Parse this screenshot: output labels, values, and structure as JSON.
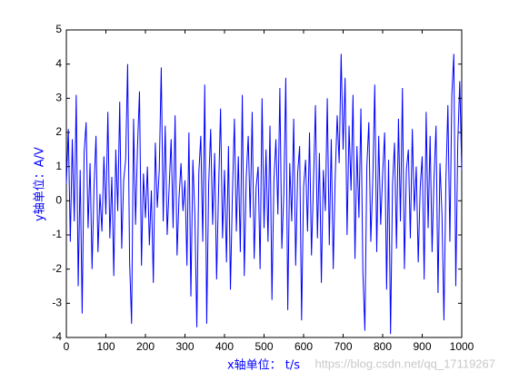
{
  "chart_data": {
    "type": "line",
    "xlabel": "x轴单位： t/s",
    "ylabel": "y轴单位：A/V",
    "watermark": "https://blog.csdn.net/qq_17119267",
    "color": "#0000ff",
    "xlim": [
      0,
      1000
    ],
    "ylim": [
      -4,
      5
    ],
    "xticks": [
      0,
      100,
      200,
      300,
      400,
      500,
      600,
      700,
      800,
      900,
      1000
    ],
    "yticks": [
      -4,
      -3,
      -2,
      -1,
      0,
      1,
      2,
      3,
      4,
      5
    ],
    "x": [
      0,
      5,
      10,
      15,
      20,
      25,
      30,
      35,
      40,
      45,
      50,
      55,
      60,
      65,
      70,
      75,
      80,
      85,
      90,
      95,
      100,
      105,
      110,
      115,
      120,
      125,
      130,
      135,
      140,
      145,
      150,
      155,
      160,
      165,
      170,
      175,
      180,
      185,
      190,
      195,
      200,
      205,
      210,
      215,
      220,
      225,
      230,
      235,
      240,
      245,
      250,
      255,
      260,
      265,
      270,
      275,
      280,
      285,
      290,
      295,
      300,
      305,
      310,
      315,
      320,
      325,
      330,
      335,
      340,
      345,
      350,
      355,
      360,
      365,
      370,
      375,
      380,
      385,
      390,
      395,
      400,
      405,
      410,
      415,
      420,
      425,
      430,
      435,
      440,
      445,
      450,
      455,
      460,
      465,
      470,
      475,
      480,
      485,
      490,
      495,
      500,
      505,
      510,
      515,
      520,
      525,
      530,
      535,
      540,
      545,
      550,
      555,
      560,
      565,
      570,
      575,
      580,
      585,
      590,
      595,
      600,
      605,
      610,
      615,
      620,
      625,
      630,
      635,
      640,
      645,
      650,
      655,
      660,
      665,
      670,
      675,
      680,
      685,
      690,
      695,
      700,
      705,
      710,
      715,
      720,
      725,
      730,
      735,
      740,
      745,
      750,
      755,
      760,
      765,
      770,
      775,
      780,
      785,
      790,
      795,
      800,
      805,
      810,
      815,
      820,
      825,
      830,
      835,
      840,
      845,
      850,
      855,
      860,
      865,
      870,
      875,
      880,
      885,
      890,
      895,
      900,
      905,
      910,
      915,
      920,
      925,
      930,
      935,
      940,
      945,
      950,
      955,
      960,
      965,
      970,
      975,
      980,
      985,
      990,
      995,
      1000
    ],
    "values": [
      0.5,
      2.1,
      -1.2,
      1.8,
      -0.6,
      3.1,
      -2.5,
      0.9,
      -3.3,
      1.4,
      2.3,
      -0.8,
      1.1,
      -2.0,
      0.4,
      1.9,
      -1.5,
      0.2,
      -0.9,
      1.3,
      -0.4,
      2.6,
      -1.1,
      0.7,
      -2.2,
      1.5,
      -0.3,
      2.9,
      -1.4,
      0.6,
      1.2,
      4.0,
      -1.8,
      -3.6,
      2.4,
      -0.7,
      1.6,
      3.2,
      -1.9,
      0.8,
      -0.5,
      1.0,
      -1.3,
      0.3,
      -2.4,
      1.7,
      -0.2,
      0.9,
      3.9,
      -0.6,
      2.2,
      -1.0,
      0.4,
      1.8,
      -0.8,
      2.5,
      -1.6,
      0.1,
      1.1,
      -0.3,
      0.6,
      -1.9,
      2.0,
      -2.8,
      1.2,
      -0.4,
      -3.7,
      0.8,
      1.9,
      -1.2,
      3.4,
      -3.6,
      0.5,
      2.1,
      -0.7,
      1.4,
      -2.3,
      0.3,
      2.7,
      -1.1,
      0.9,
      -1.8,
      1.6,
      -2.6,
      0.2,
      2.4,
      -0.9,
      1.3,
      -1.5,
      3.1,
      -2.2,
      0.7,
      1.9,
      -0.5,
      2.6,
      -1.7,
      0.4,
      1.0,
      -2.0,
      3.0,
      -0.8,
      1.5,
      -1.2,
      2.2,
      -2.9,
      0.6,
      1.8,
      -0.4,
      3.3,
      -1.4,
      0.2,
      3.6,
      -3.2,
      1.1,
      -0.6,
      2.4,
      -1.9,
      0.8,
      1.6,
      -3.5,
      0.4,
      1.2,
      -0.9,
      2.0,
      -1.6,
      0.5,
      2.8,
      -1.1,
      1.4,
      -2.4,
      0.9,
      -0.3,
      3.0,
      -1.3,
      1.8,
      -2.0,
      0.7,
      2.5,
      1.1,
      4.3,
      1.5,
      3.6,
      -1.0,
      2.2,
      0.3,
      3.1,
      -1.7,
      1.6,
      -0.5,
      2.7,
      -2.1,
      -3.8,
      1.0,
      2.3,
      -1.2,
      0.6,
      3.4,
      -1.5,
      1.9,
      -0.7,
      0.8,
      2.0,
      -2.6,
      1.2,
      -3.9,
      0.5,
      1.7,
      -1.4,
      2.4,
      -0.6,
      3.3,
      -2.0,
      0.9,
      1.5,
      -1.1,
      2.1,
      -0.3,
      1.0,
      -1.8,
      0.4,
      1.3,
      -2.3,
      2.6,
      -0.8,
      1.9,
      -1.5,
      0.7,
      2.2,
      -2.7,
      1.1,
      -0.4,
      -3.5,
      0.6,
      2.8,
      -1.2,
      3.1,
      4.3,
      -2.5,
      1.7,
      3.5,
      0.9
    ]
  }
}
